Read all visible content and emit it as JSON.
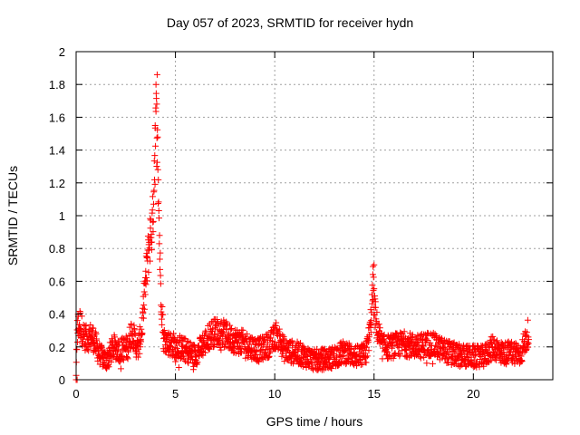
{
  "chart_data": {
    "type": "scatter",
    "title": "Day 057 of 2023, SRMTID for receiver hydn",
    "xlabel": "GPS time / hours",
    "ylabel": "SRMTID / TECUs",
    "xlim": [
      0,
      24
    ],
    "ylim": [
      0,
      2
    ],
    "xticks": [
      0,
      5,
      10,
      15,
      20
    ],
    "yticks": [
      0,
      0.2,
      0.4,
      0.6,
      0.8,
      1,
      1.2,
      1.4,
      1.6,
      1.8,
      2
    ],
    "xtick_labels": [
      "0",
      "5",
      "10",
      "15",
      "20"
    ],
    "ytick_labels": [
      "0",
      "0.2",
      "0.4",
      "0.6",
      "0.8",
      "1",
      "1.2",
      "1.4",
      "1.6",
      "1.8",
      "2"
    ],
    "grid": true,
    "marker": "+",
    "color": "#ff0000",
    "x_range_data": [
      0,
      22.8
    ],
    "series": [
      {
        "name": "SRMTID",
        "profile_x": [
          0,
          0.05,
          0.2,
          0.35,
          0.5,
          0.8,
          1.2,
          1.5,
          1.9,
          2.2,
          2.6,
          2.8,
          3.1,
          3.3,
          3.5,
          3.7,
          3.85,
          3.95,
          4.05,
          4.15,
          4.25,
          4.4,
          4.7,
          5.2,
          6.0,
          6.8,
          7.2,
          7.8,
          8.5,
          9.2,
          9.8,
          10.1,
          10.5,
          11.2,
          12.0,
          12.8,
          13.5,
          14.2,
          14.6,
          14.8,
          14.95,
          15.1,
          15.4,
          15.8,
          16.5,
          17.2,
          17.8,
          18.5,
          19.2,
          20.0,
          20.5,
          21.0,
          21.5,
          22.0,
          22.4,
          22.8
        ],
        "profile_y": [
          0.0,
          0.3,
          0.35,
          0.28,
          0.25,
          0.27,
          0.15,
          0.12,
          0.2,
          0.18,
          0.2,
          0.3,
          0.18,
          0.3,
          0.6,
          0.85,
          0.95,
          1.35,
          1.6,
          1.1,
          0.6,
          0.25,
          0.22,
          0.2,
          0.15,
          0.28,
          0.3,
          0.25,
          0.22,
          0.18,
          0.22,
          0.28,
          0.18,
          0.16,
          0.12,
          0.13,
          0.17,
          0.14,
          0.16,
          0.3,
          0.55,
          0.35,
          0.2,
          0.2,
          0.22,
          0.2,
          0.22,
          0.18,
          0.15,
          0.14,
          0.14,
          0.2,
          0.16,
          0.17,
          0.16,
          0.3
        ],
        "peaks": [
          {
            "x": 4.08,
            "y": 1.86
          },
          {
            "x": 4.02,
            "y": 1.8
          },
          {
            "x": 4.06,
            "y": 1.68
          },
          {
            "x": 3.98,
            "y": 1.55
          },
          {
            "x": 14.95,
            "y": 0.69
          },
          {
            "x": 15.0,
            "y": 0.7
          }
        ],
        "zero_points": [
          {
            "x": 0.0,
            "y": 0.0
          },
          {
            "x": 0.05,
            "y": 0.0
          }
        ]
      }
    ]
  }
}
